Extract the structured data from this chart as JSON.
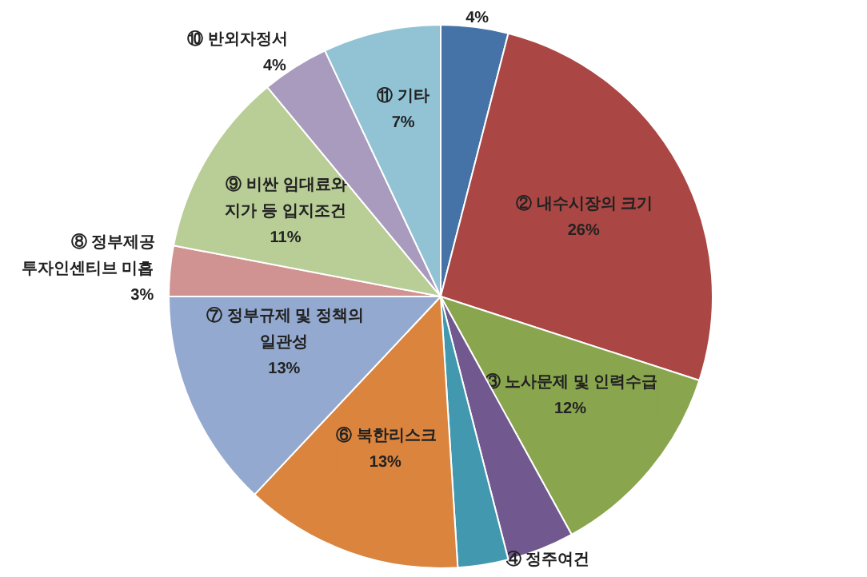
{
  "chart_data": {
    "type": "pie",
    "categories": [
      null,
      "② 내수시장의 크기",
      "③ 노사문제 및 인력수급",
      "④ 정주여건",
      null,
      "⑥ 북한리스크",
      "⑦ 정부규제 및 정책의\n일관성",
      "⑧ 정부제공\n투자인센티브 미흡",
      "⑨ 비싼 임대료와\n지가 등 입지조건",
      "⑩ 반외자정서",
      "⑪ 기타"
    ],
    "values": [
      4,
      26,
      12,
      4,
      3,
      13,
      13,
      3,
      11,
      4,
      7
    ],
    "value_labels": [
      "4%",
      "26%",
      "12%",
      null,
      null,
      "13%",
      "13%",
      "3%",
      "11%",
      "4%",
      "7%"
    ],
    "colors": [
      "#4572a7",
      "#aa4643",
      "#89a54e",
      "#71588f",
      "#4198af",
      "#db843d",
      "#93a9cf",
      "#d19392",
      "#b9cd96",
      "#a99bbd",
      "#91c3d5"
    ]
  }
}
